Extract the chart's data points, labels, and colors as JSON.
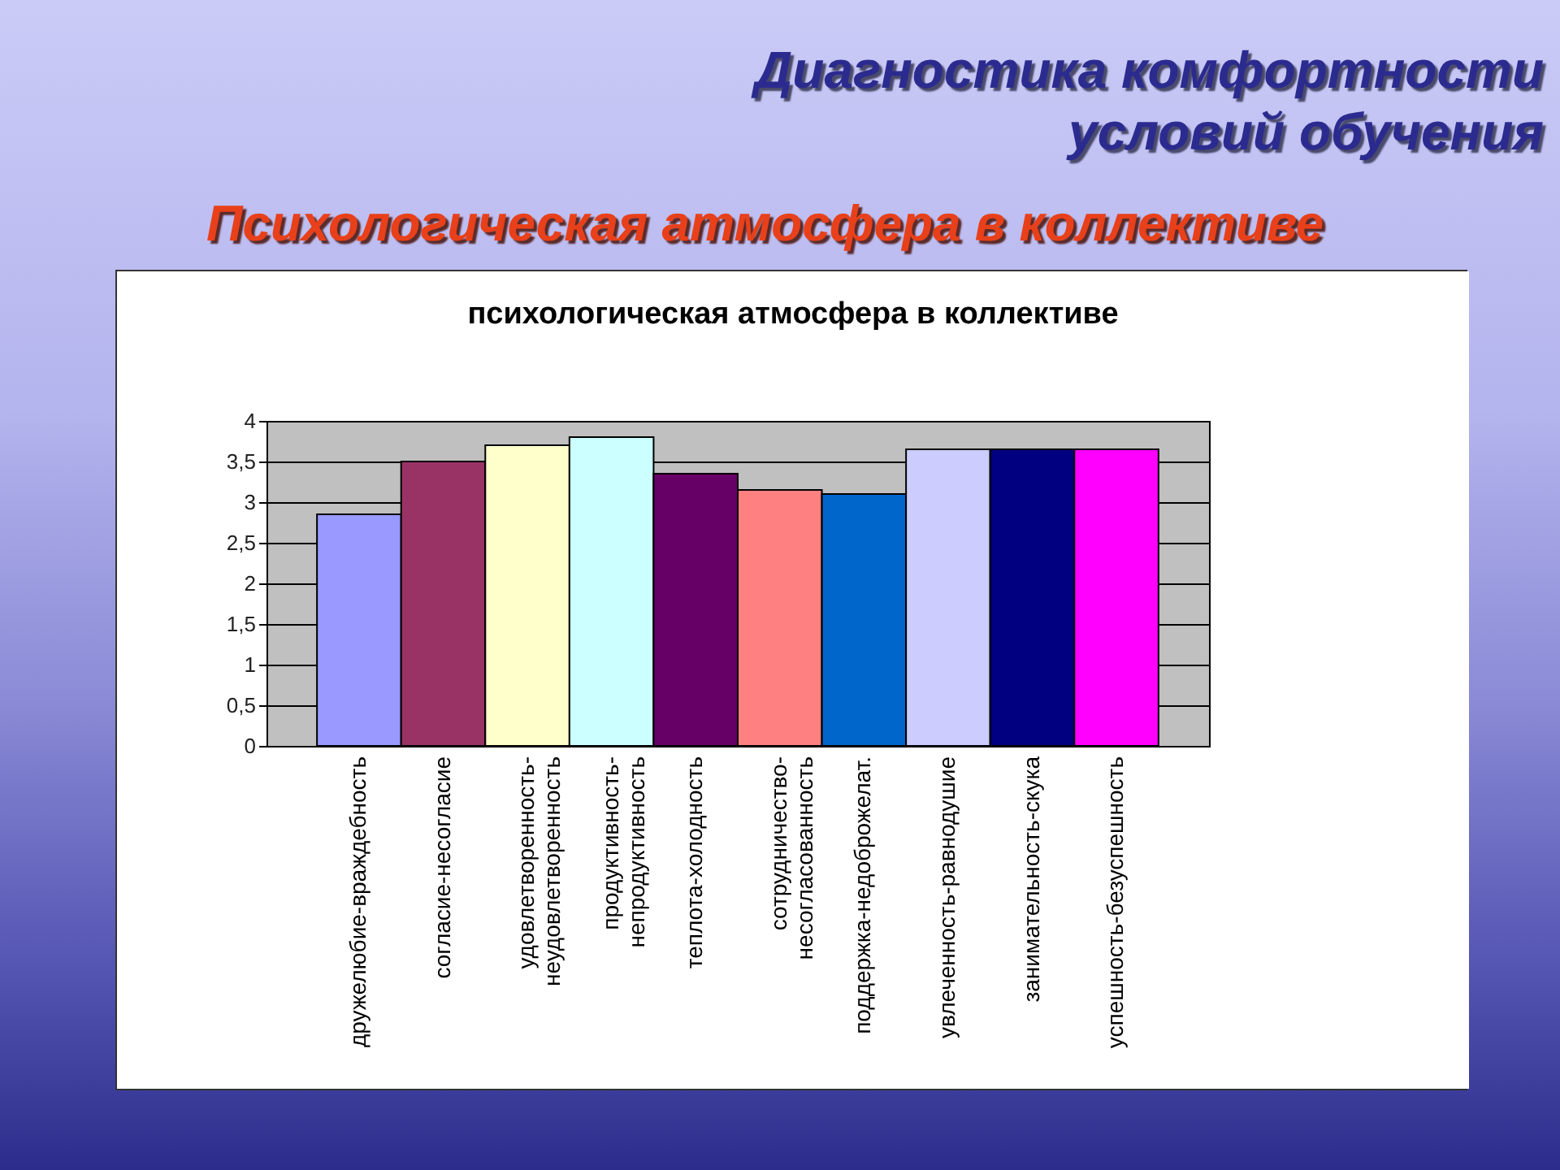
{
  "chart_data": {
    "type": "bar",
    "title": "психологическая атмосфера в коллективе",
    "annotations": [
      "Диагностика комфортности условий обучения",
      "Психологическая атмосфера в коллективе"
    ],
    "categories": [
      "дружелюбие-враждебность",
      "согласие-несогласие",
      "удовлетворенность-неудовлетворенность",
      "продуктивность-непродуктивность",
      "теплота-холодность",
      "сотрудничество-несогласованность",
      "поддержка-недоброжелат.",
      "увлеченность-равнодушие",
      "занимательность-скука",
      "успешность-безуспешность"
    ],
    "values": [
      2.85,
      3.5,
      3.7,
      3.8,
      3.35,
      3.15,
      3.1,
      3.65,
      3.65,
      3.65
    ],
    "colors": [
      "#9999ff",
      "#993366",
      "#ffffcc",
      "#ccffff",
      "#660066",
      "#ff8080",
      "#0066cc",
      "#ccccff",
      "#000080",
      "#ff00ff"
    ],
    "ylim": [
      0,
      4
    ],
    "yticks": [
      0,
      {
        "value": 0.5,
        "label": "0,5"
      },
      1,
      {
        "value": 1.5,
        "label": "1,5"
      },
      2,
      {
        "value": 2.5,
        "label": "2,5"
      },
      3,
      {
        "value": 3.5,
        "label": "3,5"
      },
      4
    ],
    "grid": "y"
  }
}
